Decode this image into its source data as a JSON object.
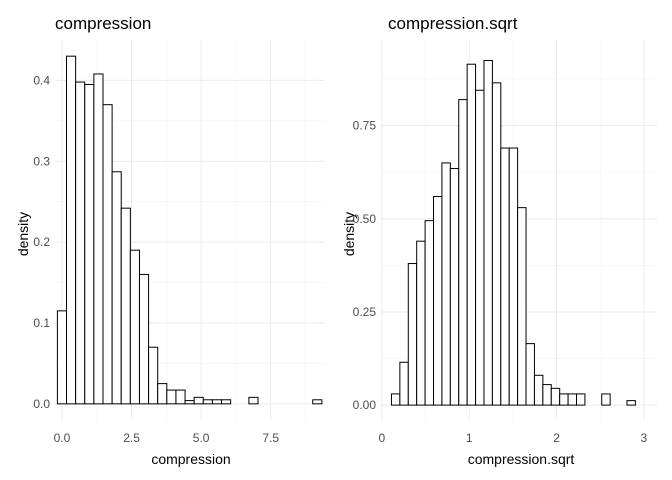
{
  "chart_data": [
    {
      "type": "bar",
      "title": "compression",
      "xlabel": "compression",
      "ylabel": "density",
      "xlim": [
        -0.25,
        9.45
      ],
      "ylim": [
        -0.02,
        0.45
      ],
      "xticks": [
        0,
        2.5,
        5,
        7.5
      ],
      "xtick_labels": [
        "0.0",
        "2.5",
        "5.0",
        "7.5"
      ],
      "yticks": [
        0,
        0.1,
        0.2,
        0.3,
        0.4
      ],
      "ytick_labels": [
        "0.0",
        "0.1",
        "0.2",
        "0.3",
        "0.4"
      ],
      "grid": true,
      "bin_width": 0.3276,
      "bin_start": -0.1638,
      "values": [
        0.115,
        0.43,
        0.398,
        0.395,
        0.408,
        0.37,
        0.287,
        0.242,
        0.19,
        0.16,
        0.07,
        0.025,
        0.017,
        0.017,
        0.004,
        0.008,
        0.005,
        0.005,
        0.005,
        0,
        0,
        0.008,
        0,
        0,
        0,
        0,
        0,
        0,
        0.005
      ]
    },
    {
      "type": "bar",
      "title": "compression.sqrt",
      "xlabel": "compression.sqrt",
      "ylabel": "density",
      "xlim": [
        -0.01,
        3.15
      ],
      "ylim": [
        -0.04,
        0.98
      ],
      "xticks": [
        0,
        1,
        2,
        3
      ],
      "xtick_labels": [
        "0",
        "1",
        "2",
        "3"
      ],
      "yticks": [
        0,
        0.25,
        0.5,
        0.75
      ],
      "ytick_labels": [
        "0.00",
        "0.25",
        "0.50",
        "0.75"
      ],
      "grid": true,
      "bin_width": 0.0963,
      "bin_start": 0.1098,
      "values": [
        0.03,
        0.115,
        0.38,
        0.44,
        0.495,
        0.56,
        0.65,
        0.635,
        0.82,
        0.915,
        0.845,
        0.925,
        0.865,
        0.69,
        0.69,
        0.53,
        0.165,
        0.08,
        0.055,
        0.045,
        0.03,
        0.03,
        0.03,
        0,
        0,
        0.03,
        0,
        0,
        0.012
      ]
    }
  ]
}
